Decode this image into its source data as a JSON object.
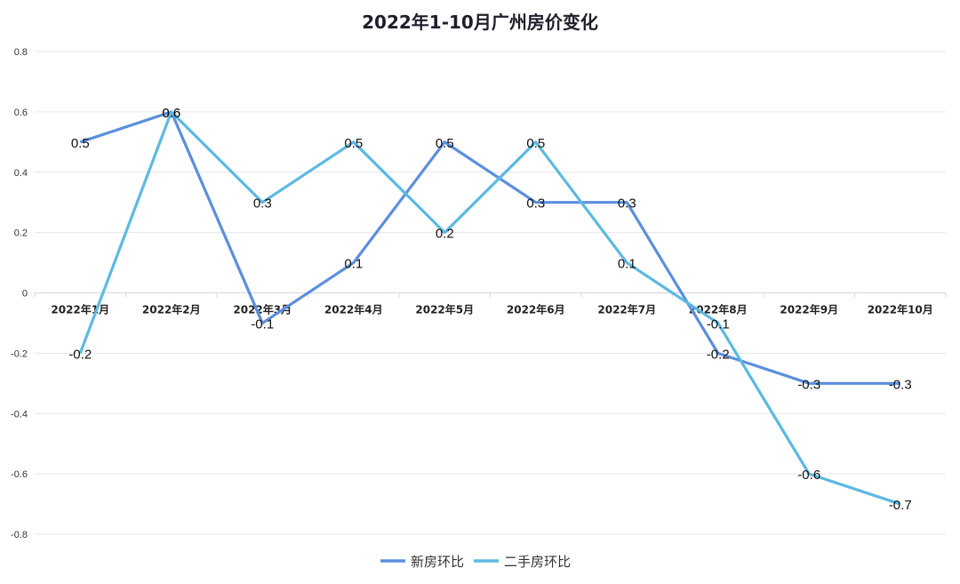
{
  "chart_data": {
    "type": "line",
    "title": "2022年1-10月广州房价变化",
    "xlabel": "",
    "ylabel": "",
    "categories": [
      "2022年1月",
      "2022年2月",
      "2022年3月",
      "2022年4月",
      "2022年5月",
      "2022年6月",
      "2022年7月",
      "2022年8月",
      "2022年9月",
      "2022年10月"
    ],
    "series": [
      {
        "name": "新房环比",
        "color": "#5b8fdd",
        "values": [
          0.5,
          0.6,
          -0.1,
          0.1,
          0.5,
          0.3,
          0.3,
          -0.2,
          -0.3,
          -0.3
        ]
      },
      {
        "name": "二手房环比",
        "color": "#5cb9e2",
        "values": [
          -0.2,
          0.6,
          0.3,
          0.5,
          0.2,
          0.5,
          0.1,
          -0.1,
          -0.6,
          -0.7
        ]
      }
    ],
    "ylim": [
      -0.8,
      0.8
    ],
    "yticks": [
      "0.8",
      "0.6",
      "0.4",
      "0.2",
      "0",
      "-0.2",
      "-0.4",
      "-0.6",
      "-0.8"
    ],
    "grid": true,
    "legend_position": "bottom"
  }
}
